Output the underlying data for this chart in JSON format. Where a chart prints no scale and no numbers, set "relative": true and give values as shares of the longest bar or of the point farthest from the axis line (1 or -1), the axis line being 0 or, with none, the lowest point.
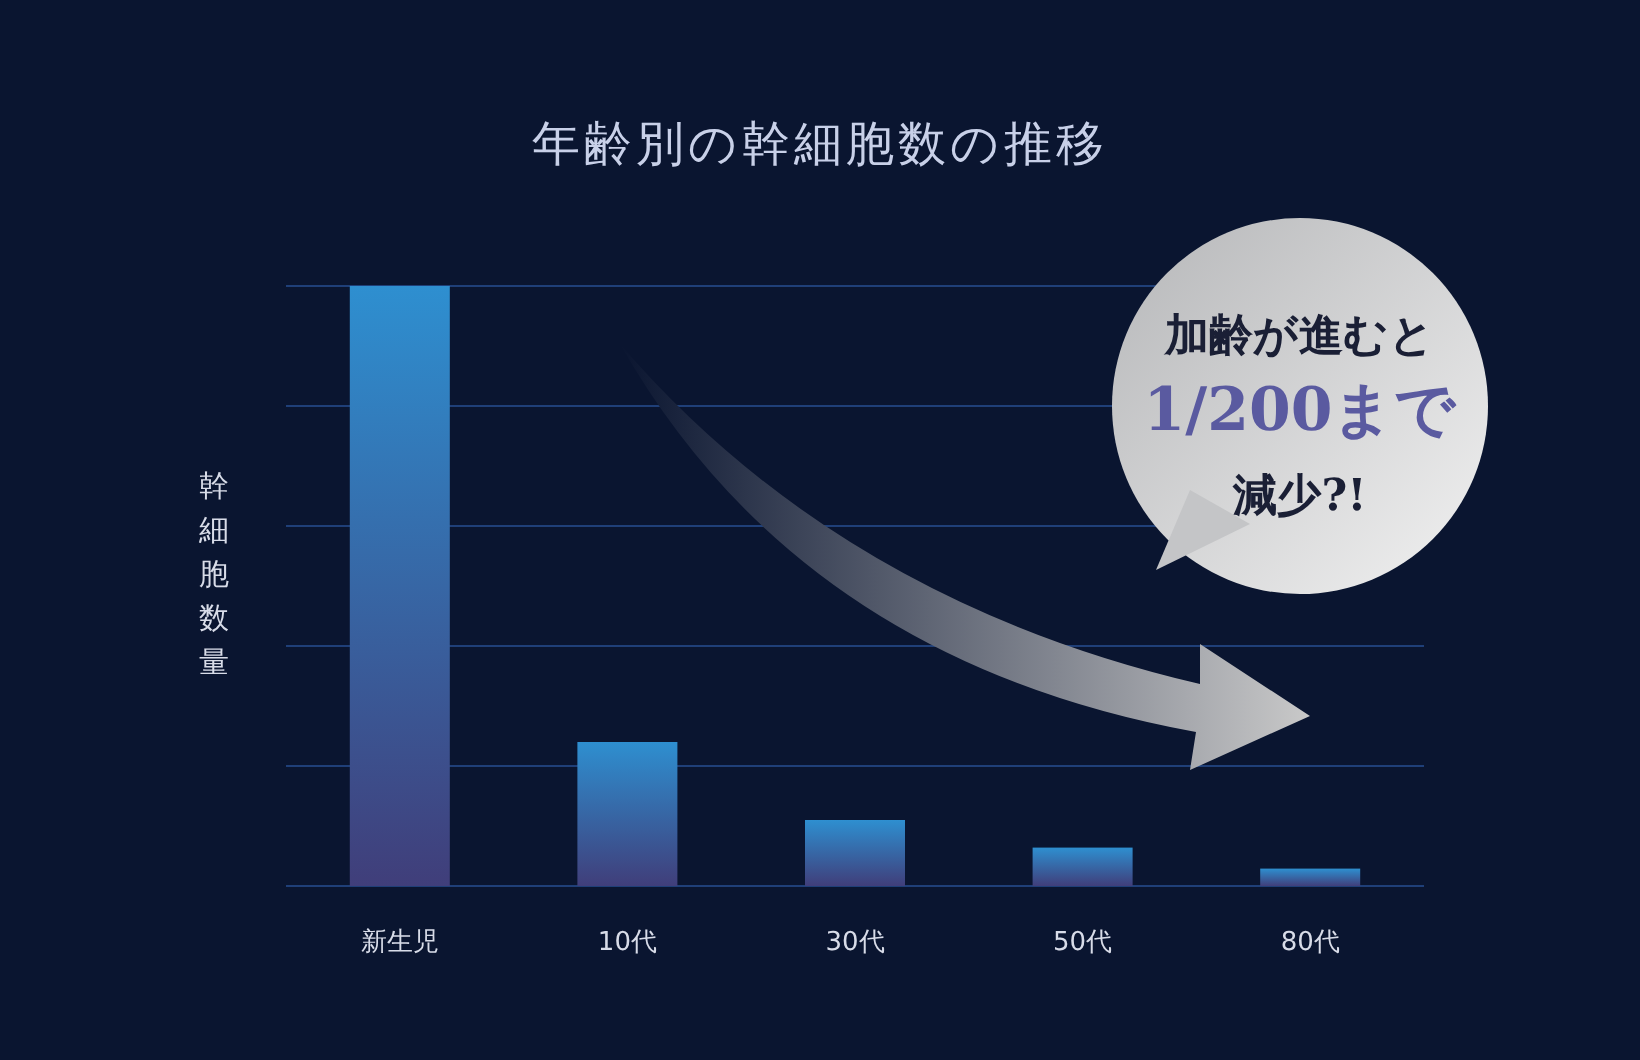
{
  "chart_data": {
    "type": "bar",
    "title": "年齢別の幹細胞数の推移",
    "ylabel": "幹細胞数量",
    "categories": [
      "新生児",
      "10代",
      "30代",
      "50代",
      "80代"
    ],
    "values": [
      1,
      0.24,
      0.11,
      0.064,
      0.029
    ],
    "color": "#2e8fd0",
    "relative": true,
    "ref_lines": [
      {
        "axis": "y",
        "value": 0.2,
        "color": "#1f3f78"
      },
      {
        "axis": "y",
        "value": 0.4,
        "color": "#1f3f78"
      },
      {
        "axis": "y",
        "value": 0.6,
        "color": "#1f3f78"
      },
      {
        "axis": "y",
        "value": 0.8,
        "color": "#1f3f78"
      },
      {
        "axis": "y",
        "value": 1,
        "color": "#1f3f78"
      }
    ],
    "annotations": [
      "加齢が進むと",
      "1/200まで",
      "減少?!"
    ]
  }
}
